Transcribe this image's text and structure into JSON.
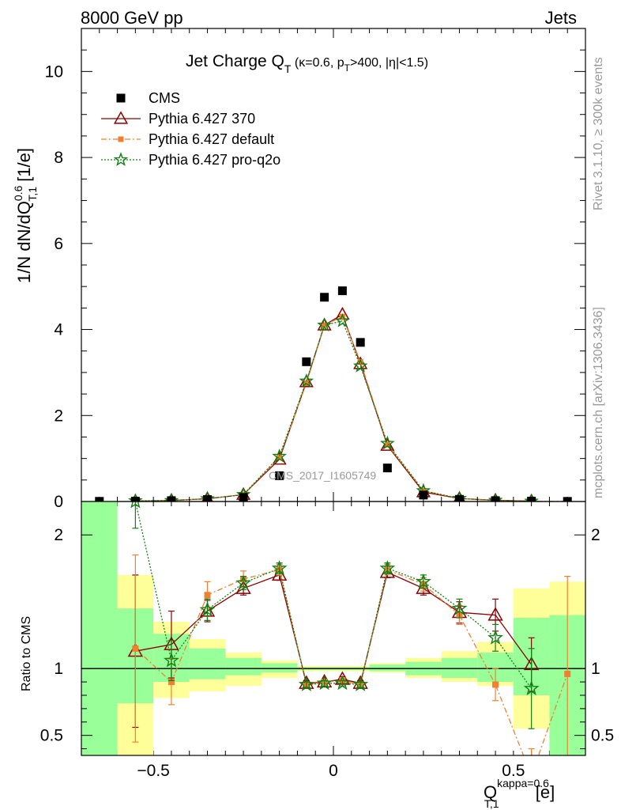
{
  "header": {
    "left": "8000 GeV pp",
    "right": "Jets"
  },
  "title": {
    "main": "Jet Charge Q",
    "main_sub": "T",
    "detail_open": " (κ=0.6, p",
    "detail_sub": "T",
    "detail_close": ">400, |η|<1.5)"
  },
  "side_labels": {
    "rivet": "Rivet 3.1.10, ≥ 300k events",
    "mcplots": "mcplots.cern.ch [arXiv:1306.3436]"
  },
  "watermark": "CMS_2017_I1605749",
  "axes": {
    "y_main": {
      "prefix": "1/N dN/dQ",
      "sup": "0.6",
      "sub": "T,1",
      "unit": " [1/e]"
    },
    "y_ratio": "Ratio to CMS",
    "x": {
      "main": "Q",
      "sup": "kappa=0.6",
      "sub": "T,1",
      "unit": " [e]"
    }
  },
  "legend": [
    {
      "label": "CMS",
      "marker": "square",
      "color": "#000000"
    },
    {
      "label": "Pythia 6.427 370",
      "marker": "triangle",
      "color": "#8b0000"
    },
    {
      "label": "Pythia 6.427 default",
      "marker": "smallsquare",
      "color": "#f08030"
    },
    {
      "label": "Pythia 6.427 pro-q2o",
      "marker": "star",
      "color": "#127f12"
    }
  ],
  "chart_data": {
    "type": "line",
    "x": [
      -0.65,
      -0.55,
      -0.45,
      -0.35,
      -0.25,
      -0.15,
      -0.075,
      -0.025,
      0.025,
      0.075,
      0.15,
      0.25,
      0.35,
      0.45,
      0.55,
      0.65
    ],
    "xlim": [
      -0.7,
      0.7
    ],
    "x_ticks": [
      -0.5,
      0,
      0.5
    ],
    "main_ylim": [
      0,
      11
    ],
    "main_y_ticks": [
      0,
      2,
      4,
      6,
      8,
      10
    ],
    "ratio_ylim": [
      0.35,
      2.25
    ],
    "ratio_y_ticks": [
      0.5,
      1,
      2
    ],
    "ratio_reference": 1,
    "data": {
      "name": "CMS",
      "values": [
        0.004,
        0.008,
        0.02,
        0.045,
        0.095,
        0.6,
        3.25,
        4.75,
        4.9,
        3.7,
        0.78,
        0.15,
        0.05,
        0.02,
        0.009,
        0.003
      ]
    },
    "uncertainty_bands": {
      "edges": [
        -0.7,
        -0.6,
        -0.5,
        -0.4,
        -0.3,
        -0.2,
        -0.1,
        0.0,
        0.1,
        0.2,
        0.3,
        0.4,
        0.5,
        0.6,
        0.7
      ],
      "yellow": [
        [
          0.35,
          2.25
        ],
        [
          0.35,
          1.7
        ],
        [
          0.78,
          1.35
        ],
        [
          0.83,
          1.22
        ],
        [
          0.87,
          1.12
        ],
        [
          0.93,
          1.06
        ],
        [
          0.98,
          1.02
        ],
        [
          0.98,
          1.02
        ],
        [
          0.97,
          1.04
        ],
        [
          0.93,
          1.08
        ],
        [
          0.9,
          1.13
        ],
        [
          0.87,
          1.2
        ],
        [
          0.55,
          1.6
        ],
        [
          0.4,
          1.65
        ]
      ],
      "green": [
        [
          0.35,
          2.25
        ],
        [
          0.74,
          1.45
        ],
        [
          0.9,
          1.26
        ],
        [
          0.92,
          1.15
        ],
        [
          0.95,
          1.08
        ],
        [
          0.97,
          1.04
        ],
        [
          0.99,
          1.01
        ],
        [
          0.99,
          1.01
        ],
        [
          0.98,
          1.03
        ],
        [
          0.95,
          1.05
        ],
        [
          0.93,
          1.08
        ],
        [
          0.9,
          1.12
        ],
        [
          0.8,
          1.38
        ],
        [
          0.35,
          1.4
        ]
      ]
    },
    "series": [
      {
        "name": "Pythia 6.427 370",
        "color": "#8b0000",
        "marker": "triangle",
        "dash": "",
        "values": [
          null,
          0.01,
          0.025,
          0.065,
          0.16,
          0.98,
          2.78,
          4.1,
          4.35,
          3.2,
          1.3,
          0.22,
          0.07,
          0.028,
          0.01,
          null
        ],
        "ratio": [
          null,
          1.13,
          1.18,
          1.43,
          1.6,
          1.7,
          0.89,
          0.9,
          0.92,
          0.89,
          1.72,
          1.6,
          1.42,
          1.4,
          1.03,
          null
        ],
        "ratio_err": [
          null,
          0.57,
          0.25,
          0.08,
          0.05,
          0.04,
          0.02,
          0.02,
          0.02,
          0.02,
          0.04,
          0.05,
          0.08,
          0.12,
          0.2,
          null
        ]
      },
      {
        "name": "Pythia 6.427 default",
        "color": "#f08030",
        "marker": "smallsquare",
        "dash": "7,3,2,3",
        "values": [
          null,
          0.01,
          0.018,
          0.07,
          0.16,
          1.03,
          2.75,
          4.1,
          4.3,
          3.25,
          1.32,
          0.25,
          0.07,
          0.018,
          0.003,
          0.003
        ],
        "ratio": [
          null,
          1.15,
          0.9,
          1.55,
          1.67,
          1.74,
          0.88,
          0.9,
          0.91,
          0.88,
          1.74,
          1.63,
          1.4,
          0.88,
          0.2,
          0.96
        ],
        "ratio_err": [
          null,
          0.7,
          0.17,
          0.1,
          0.06,
          0.04,
          0.02,
          0.02,
          0.02,
          0.02,
          0.04,
          0.05,
          0.07,
          0.12,
          0.2,
          0.73
        ]
      },
      {
        "name": "Pythia 6.427 pro-q2o",
        "color": "#127f12",
        "marker": "star",
        "dash": "2,2",
        "values": [
          null,
          0.018,
          0.02,
          0.065,
          0.16,
          1.05,
          2.8,
          4.1,
          4.2,
          3.15,
          1.35,
          0.25,
          0.072,
          0.025,
          0.008,
          null
        ],
        "ratio": [
          null,
          2.25,
          1.06,
          1.44,
          1.64,
          1.75,
          0.88,
          0.89,
          0.89,
          0.88,
          1.75,
          1.65,
          1.45,
          1.23,
          0.85,
          null
        ],
        "ratio_err": [
          null,
          0.2,
          0.15,
          0.08,
          0.05,
          0.04,
          0.02,
          0.02,
          0.02,
          0.02,
          0.04,
          0.05,
          0.07,
          0.1,
          0.3,
          null
        ]
      }
    ]
  }
}
